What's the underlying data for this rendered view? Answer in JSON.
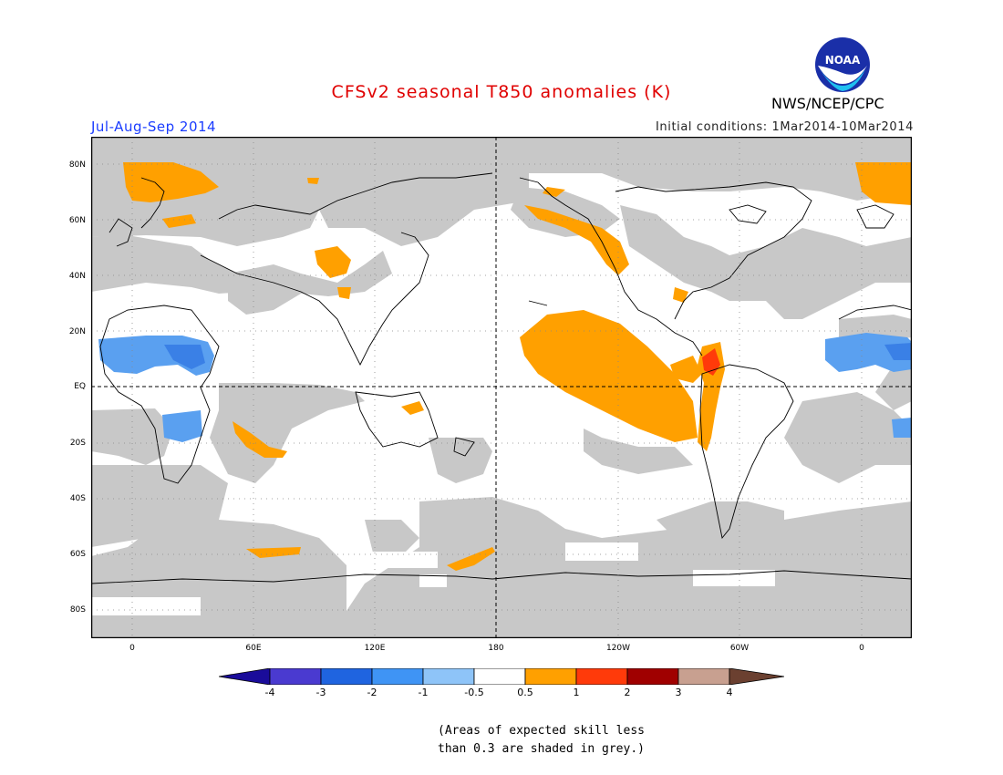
{
  "title": "CFSv2 seasonal T850 anomalies (K)",
  "period": "Jul-Aug-Sep 2014",
  "initial_conditions": "Initial conditions: 1Mar2014-10Mar2014",
  "agency": "NWS/NCEP/CPC",
  "logo_text": "NOAA",
  "lat_labels": [
    "80N",
    "60N",
    "40N",
    "20N",
    "EQ",
    "20S",
    "40S",
    "60S",
    "80S"
  ],
  "lon_labels": [
    "0",
    "60E",
    "120E",
    "180",
    "120W",
    "60W",
    "0"
  ],
  "colorbar": {
    "labels": [
      "-4",
      "-3",
      "-2",
      "-1",
      "-0.5",
      "0.5",
      "1",
      "2",
      "3",
      "4"
    ],
    "colors": [
      "#1a0c9a",
      "#4a3ad0",
      "#1f64e0",
      "#3f94f5",
      "#8ec4f8",
      "#ffffff",
      "#ffa000",
      "#ff3a0a",
      "#a00000",
      "#c8a090",
      "#6b4030"
    ]
  },
  "colors": {
    "skill_grey": "#c8c8c8",
    "positive_anomaly": "#ffa000",
    "strong_anomaly": "#ff3a0a",
    "negative_anomaly": "#5aa0f0"
  },
  "note_line1": "(Areas of expected skill less",
  "note_line2": "than 0.3 are shaded in grey.)"
}
